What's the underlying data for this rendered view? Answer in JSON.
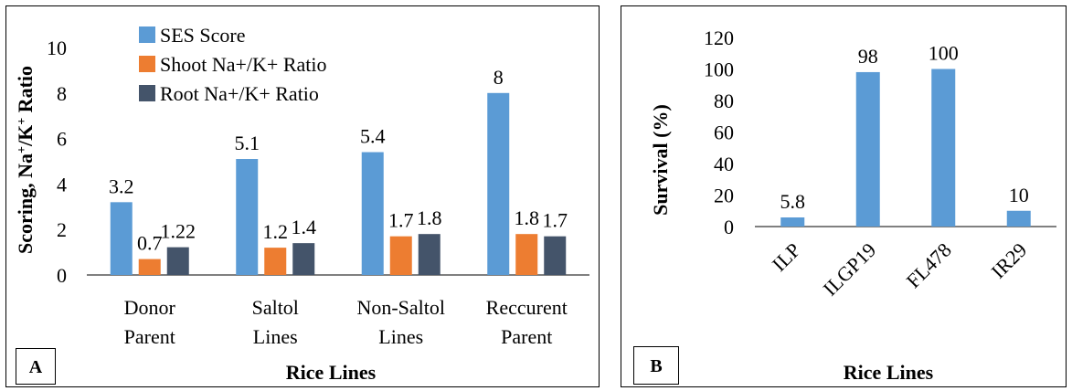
{
  "chart_data": [
    {
      "panel_label": "A",
      "type": "bar",
      "xlabel": "Rice Lines",
      "ylabel": "Scoring, Na⁺/K⁺ Ratio",
      "ylim": [
        0,
        10
      ],
      "yticks": [
        "0",
        "2",
        "4",
        "6",
        "8",
        "10"
      ],
      "categories": [
        [
          "Donor",
          "Parent"
        ],
        [
          "Saltol",
          "Lines"
        ],
        [
          "Non-Saltol",
          "Lines"
        ],
        [
          "Reccurent",
          "Parent"
        ]
      ],
      "series": [
        {
          "name": "SES Score",
          "values": [
            3.2,
            5.1,
            5.4,
            8
          ],
          "labels": [
            "3.2",
            "5.1",
            "5.4",
            "8"
          ],
          "color": "#5b9bd5"
        },
        {
          "name": "Shoot Na+/K+ Ratio",
          "values": [
            0.7,
            1.2,
            1.7,
            1.8
          ],
          "labels": [
            "0.7",
            "1.2",
            "1.7",
            "1.8"
          ],
          "color": "#ed7d31"
        },
        {
          "name": "Root Na+/K+ Ratio",
          "values": [
            1.22,
            1.4,
            1.8,
            1.7
          ],
          "labels": [
            "1.22",
            "1.4",
            "1.8",
            "1.7"
          ],
          "color": "#44546a"
        }
      ],
      "legend_position": "top"
    },
    {
      "panel_label": "B",
      "type": "bar",
      "xlabel": "Rice Lines",
      "ylabel": "Survival (%)",
      "ylim": [
        0,
        120
      ],
      "yticks": [
        "0",
        "20",
        "40",
        "60",
        "80",
        "100",
        "120"
      ],
      "categories": [
        "ILP",
        "ILGP19",
        "FL478",
        "IR29"
      ],
      "series": [
        {
          "values": [
            5.8,
            98,
            100,
            10
          ],
          "labels": [
            "5.8",
            "98",
            "100",
            "10"
          ],
          "color": "#5b9bd5"
        }
      ]
    }
  ]
}
